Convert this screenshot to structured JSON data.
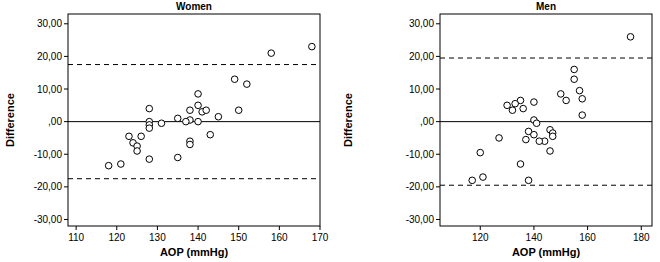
{
  "chart_data": [
    {
      "type": "scatter",
      "title": "Women",
      "x_label": "AOP (mmHg)",
      "y_label": "Difference",
      "x": [
        158,
        168,
        152,
        149,
        150,
        140,
        140,
        141,
        142,
        140,
        138,
        138,
        137,
        135,
        145,
        143,
        138,
        138,
        135,
        128,
        128,
        128,
        128,
        131,
        126,
        123,
        124,
        125,
        125,
        128,
        121,
        118
      ],
      "values": [
        21,
        23,
        11.5,
        13,
        3.5,
        8.5,
        5,
        3,
        3.5,
        0,
        3.5,
        0.5,
        0,
        1,
        1.5,
        -4,
        -6,
        -7,
        -11,
        4,
        0,
        -1,
        -2,
        -0.5,
        -4.5,
        -4.5,
        -6.5,
        -7.5,
        -9,
        -11.5,
        -13,
        -13.5
      ],
      "color": "#000000",
      "marker": "circle",
      "mean_difference": 0,
      "limits_of_agreement": [
        -17.5,
        17.5
      ],
      "xlim": [
        108,
        170
      ],
      "xticks": [
        110,
        120,
        130,
        140,
        150,
        160,
        170
      ],
      "ylim": [
        -32,
        33
      ],
      "yticks": [
        {
          "value": -30,
          "label": "-30,00"
        },
        {
          "value": -20,
          "label": "-20,00"
        },
        {
          "value": -10,
          "label": "-10,00"
        },
        {
          "value": 0,
          "label": ",00"
        },
        {
          "value": 10,
          "label": "10,00"
        },
        {
          "value": 20,
          "label": "20,00"
        },
        {
          "value": 30,
          "label": "30,00"
        }
      ],
      "grid": false
    },
    {
      "type": "scatter",
      "title": "Men",
      "x_label": "AOP (mmHg)",
      "y_label": "Difference",
      "x": [
        176,
        155,
        155,
        157,
        158,
        158,
        150,
        152,
        140,
        135,
        133,
        130,
        132,
        136,
        140,
        141,
        138,
        140,
        137,
        144,
        146,
        147,
        147,
        146,
        142,
        135,
        138,
        127,
        120,
        121,
        117
      ],
      "values": [
        26,
        16,
        13,
        9.5,
        7,
        2,
        8.5,
        6.5,
        6,
        6.5,
        5.5,
        5,
        3.5,
        4,
        0.5,
        -0.5,
        -3,
        -4,
        -5.5,
        -6,
        -2.5,
        -3.5,
        -4.5,
        -9,
        -6,
        -13,
        -18,
        -5,
        -9.5,
        -17,
        -18
      ],
      "color": "#000000",
      "marker": "circle",
      "mean_difference": 0,
      "limits_of_agreement": [
        -19.5,
        19.5
      ],
      "xlim": [
        105,
        184
      ],
      "xticks": [
        120,
        140,
        160,
        180
      ],
      "ylim": [
        -32,
        33
      ],
      "yticks": [
        {
          "value": -30,
          "label": "-30,00"
        },
        {
          "value": -20,
          "label": "-20,00"
        },
        {
          "value": -10,
          "label": "-10,00"
        },
        {
          "value": 0,
          "label": ",00"
        },
        {
          "value": 10,
          "label": "10,00"
        },
        {
          "value": 20,
          "label": "20,00"
        },
        {
          "value": 30,
          "label": "30,00"
        }
      ],
      "grid": false
    }
  ]
}
